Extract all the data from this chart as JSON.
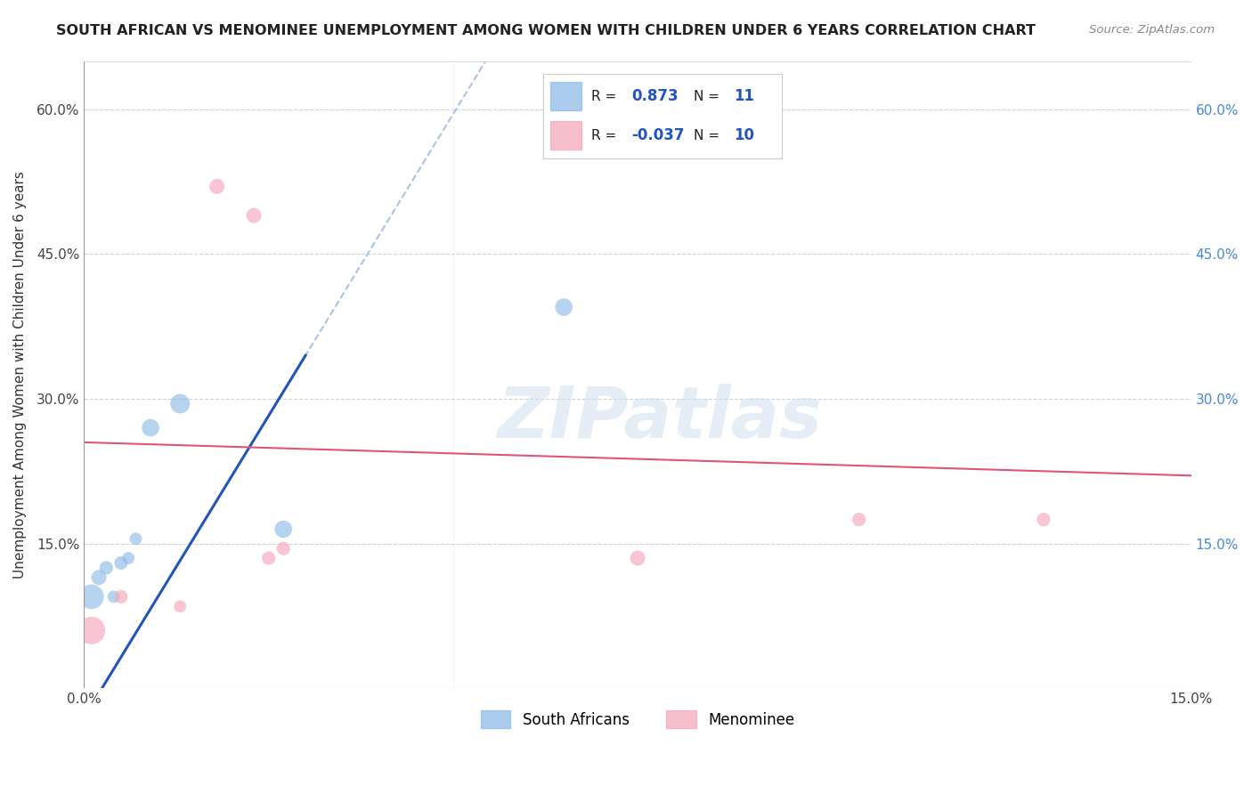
{
  "title": "SOUTH AFRICAN VS MENOMINEE UNEMPLOYMENT AMONG WOMEN WITH CHILDREN UNDER 6 YEARS CORRELATION CHART",
  "source": "Source: ZipAtlas.com",
  "ylabel": "Unemployment Among Women with Children Under 6 years",
  "xlim": [
    0.0,
    0.15
  ],
  "ylim": [
    0.0,
    0.65
  ],
  "xticks": [
    0.0,
    0.025,
    0.05,
    0.075,
    0.1,
    0.125,
    0.15
  ],
  "yticks": [
    0.0,
    0.15,
    0.3,
    0.45,
    0.6
  ],
  "ytick_labels_left": [
    "",
    "15.0%",
    "30.0%",
    "45.0%",
    "60.0%"
  ],
  "xtick_labels": [
    "0.0%",
    "",
    "",
    "",
    "",
    "",
    "15.0%"
  ],
  "ytick_labels_right": [
    "",
    "15.0%",
    "30.0%",
    "45.0%",
    "60.0%"
  ],
  "blue_dots": {
    "x": [
      0.001,
      0.002,
      0.003,
      0.004,
      0.005,
      0.006,
      0.007,
      0.009,
      0.013,
      0.027,
      0.065
    ],
    "y": [
      0.095,
      0.115,
      0.125,
      0.095,
      0.13,
      0.135,
      0.155,
      0.27,
      0.295,
      0.165,
      0.395
    ],
    "sizes": [
      400,
      150,
      120,
      100,
      120,
      100,
      100,
      200,
      250,
      200,
      200
    ]
  },
  "pink_dots": {
    "x": [
      0.001,
      0.005,
      0.013,
      0.018,
      0.023,
      0.025,
      0.027,
      0.075,
      0.105,
      0.13
    ],
    "y": [
      0.06,
      0.095,
      0.085,
      0.52,
      0.49,
      0.135,
      0.145,
      0.135,
      0.175,
      0.175
    ],
    "sizes": [
      500,
      120,
      100,
      150,
      150,
      120,
      120,
      150,
      120,
      120
    ]
  },
  "R_blue": 0.873,
  "N_blue": 11,
  "R_pink": -0.037,
  "N_pink": 10,
  "blue_color": "#90bce8",
  "pink_color": "#f5a8bc",
  "blue_line_color": "#2255bb",
  "pink_line_color": "#e05575",
  "dashed_line_color": "#aac4e0",
  "watermark_text": "ZIPatlas",
  "background_color": "#ffffff",
  "grid_color": "#cccccc"
}
